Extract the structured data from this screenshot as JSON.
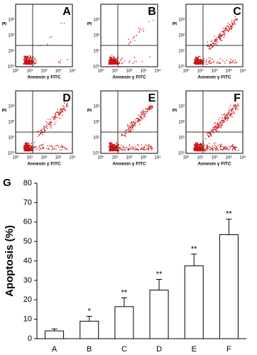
{
  "flow_axes": {
    "x_label": "Annexin γ FITC",
    "y_label": "PI",
    "x_ticks": [
      "10⁰",
      "10¹",
      "10²",
      "10³",
      "10⁴"
    ],
    "y_ticks": [
      "10⁰",
      "10¹",
      "10²",
      "10³"
    ]
  },
  "panels": [
    {
      "label": "A"
    },
    {
      "label": "B"
    },
    {
      "label": "C"
    },
    {
      "label": "D"
    },
    {
      "label": "E"
    },
    {
      "label": "F"
    }
  ],
  "chart_data": {
    "type": "bar",
    "panel_label": "G",
    "y_label": "Apoptosis (%)",
    "categories": [
      "A",
      "B",
      "C",
      "D",
      "E",
      "F"
    ],
    "values": [
      4,
      9,
      16.5,
      25,
      37.5,
      53.5
    ],
    "errors": [
      1,
      2.5,
      4.5,
      5.5,
      6,
      8
    ],
    "annotations": [
      null,
      "*",
      "**",
      "**",
      "**",
      "**"
    ],
    "ylim": [
      0,
      80
    ],
    "yticks": [
      0,
      10,
      20,
      30,
      40,
      50,
      60,
      70,
      80
    ],
    "color": "#ffffff"
  }
}
